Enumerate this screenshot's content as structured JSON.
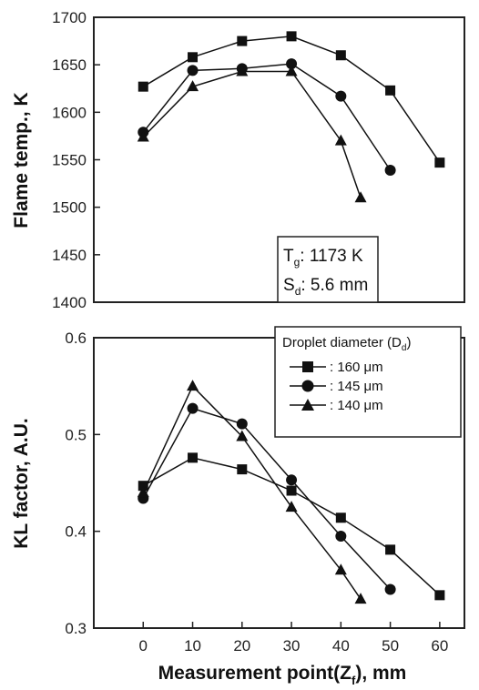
{
  "chart_data": [
    {
      "type": "line",
      "ylabel": "Flame temp., K",
      "ylim": [
        1400,
        1700
      ],
      "yticks": [
        1400,
        1450,
        1500,
        1550,
        1600,
        1650,
        1700
      ],
      "xlim": [
        -10,
        65
      ],
      "annotation": {
        "line1_main": "T",
        "line1_sub": "g",
        "line1_rest": ": 1173 K",
        "line2_main": "S",
        "line2_sub": "d",
        "line2_rest": ": 5.6 mm"
      },
      "series": [
        {
          "marker": "square",
          "x": [
            0,
            10,
            20,
            30,
            40,
            50,
            60
          ],
          "y": [
            1627,
            1658,
            1675,
            1680,
            1660,
            1623,
            1547
          ]
        },
        {
          "marker": "circle",
          "x": [
            0,
            10,
            20,
            30,
            40,
            50
          ],
          "y": [
            1579,
            1644,
            1646,
            1651,
            1617,
            1539
          ]
        },
        {
          "marker": "triangle",
          "x": [
            0,
            10,
            20,
            30,
            40,
            44
          ],
          "y": [
            1574,
            1627,
            1643,
            1643,
            1570,
            1510
          ]
        }
      ]
    },
    {
      "type": "line",
      "ylabel": "KL factor, A.U.",
      "xlabel_main": "Measurement point(Z",
      "xlabel_sub": "f",
      "xlabel_rest": "), mm",
      "ylim": [
        0.3,
        0.6
      ],
      "yticks": [
        "0.3",
        "0.4",
        "0.5",
        "0.6"
      ],
      "xlim": [
        -10,
        65
      ],
      "xticks": [
        0,
        10,
        20,
        30,
        40,
        50,
        60
      ],
      "legend": {
        "title_main": "Droplet diameter (D",
        "title_sub": "d",
        "title_rest": ")",
        "items": [
          ": 160 μm",
          ": 145 μm",
          ": 140 μm"
        ],
        "position": "top-right"
      },
      "series": [
        {
          "marker": "square",
          "x": [
            0,
            10,
            20,
            30,
            40,
            50,
            60
          ],
          "y": [
            0.447,
            0.476,
            0.464,
            0.442,
            0.414,
            0.381,
            0.334
          ]
        },
        {
          "marker": "circle",
          "x": [
            0,
            10,
            20,
            30,
            40,
            50
          ],
          "y": [
            0.434,
            0.527,
            0.511,
            0.453,
            0.395,
            0.34
          ]
        },
        {
          "marker": "triangle",
          "x": [
            0,
            10,
            20,
            30,
            40,
            44
          ],
          "y": [
            0.44,
            0.55,
            0.498,
            0.425,
            0.36,
            0.33
          ]
        }
      ]
    }
  ]
}
